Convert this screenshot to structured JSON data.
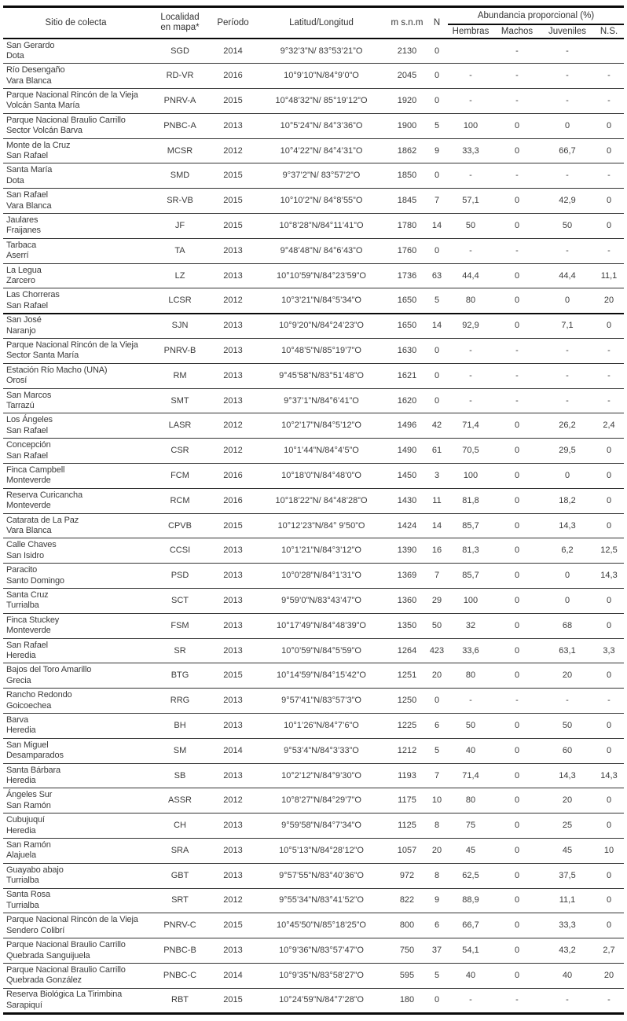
{
  "table": {
    "headers": {
      "site": "Sitio de colecta",
      "locality_line1": "Localidad",
      "locality_line2": "en mapa*",
      "period": "Período",
      "coords": "Latitud/Longitud",
      "elevation": "m s.n.m",
      "n": "N",
      "abundance_group": "Abundancia proporcional (%)",
      "females": "Hembras",
      "males": "Machos",
      "juveniles": "Juveniles",
      "ns": "N.S."
    },
    "rows": [
      {
        "site_line1": "San Gerardo",
        "site_line2": "Dota",
        "code": "SGD",
        "period": "2014",
        "coords": "9°32’3”N/ 83°53’21”O",
        "elevation": "2130",
        "n": "0",
        "females": "",
        "males": "-",
        "juveniles": "-",
        "ns": ""
      },
      {
        "site_line1": "Río Desengaño",
        "site_line2": "Vara Blanca",
        "code": "RD-VR",
        "period": "2016",
        "coords": "10°9’10”N/84°9’0”O",
        "elevation": "2045",
        "n": "0",
        "females": "-",
        "males": "-",
        "juveniles": "-",
        "ns": "-"
      },
      {
        "site_line1": "Parque Nacional Rincón de la Vieja",
        "site_line2": "Volcán Santa María",
        "code": "PNRV-A",
        "period": "2015",
        "coords": "10°48’32”N/ 85°19’12”O",
        "elevation": "1920",
        "n": "0",
        "females": "-",
        "males": "-",
        "juveniles": "-",
        "ns": "-"
      },
      {
        "site_line1": "Parque Nacional Braulio Carrillo",
        "site_line2": "Sector Volcán Barva",
        "code": "PNBC-A",
        "period": "2013",
        "coords": "10°5’24”N/ 84°3’36”O",
        "elevation": "1900",
        "n": "5",
        "females": "100",
        "males": "0",
        "juveniles": "0",
        "ns": "0"
      },
      {
        "site_line1": "Monte de la Cruz",
        "site_line2": "San Rafael",
        "code": "MCSR",
        "period": "2012",
        "coords": "10°4’22”N/ 84°4’31”O",
        "elevation": "1862",
        "n": "9",
        "females": "33,3",
        "males": "0",
        "juveniles": "66,7",
        "ns": "0"
      },
      {
        "site_line1": "Santa María",
        "site_line2": "Dota",
        "code": "SMD",
        "period": "2015",
        "coords": "9°37’2”N/ 83°57’2”O",
        "elevation": "1850",
        "n": "0",
        "females": "-",
        "males": "-",
        "juveniles": "-",
        "ns": "-"
      },
      {
        "site_line1": "San Rafael",
        "site_line2": "Vara Blanca",
        "code": "SR-VB",
        "period": "2015",
        "coords": "10°10’2”N/ 84°8’55”O",
        "elevation": "1845",
        "n": "7",
        "females": "57,1",
        "males": "0",
        "juveniles": "42,9",
        "ns": "0"
      },
      {
        "site_line1": "Jaulares",
        "site_line2": "Fraijanes",
        "code": "JF",
        "period": "2015",
        "coords": "10°8’28”N/84°11’41”O",
        "elevation": "1780",
        "n": "14",
        "females": "50",
        "males": "0",
        "juveniles": "50",
        "ns": "0"
      },
      {
        "site_line1": "Tarbaca",
        "site_line2": "Aserrí",
        "code": "TA",
        "period": "2013",
        "coords": "9°48’48”N/ 84°6’43”O",
        "elevation": "1760",
        "n": "0",
        "females": "-",
        "males": "-",
        "juveniles": "-",
        "ns": "-"
      },
      {
        "site_line1": "La Legua",
        "site_line2": "Zarcero",
        "code": "LZ",
        "period": "2013",
        "coords": "10°10’59”N/84°23’59”O",
        "elevation": "1736",
        "n": "63",
        "females": "44,4",
        "males": "0",
        "juveniles": "44,4",
        "ns": "11,1"
      },
      {
        "site_line1": "Las Chorreras",
        "site_line2": "San Rafael",
        "code": "LCSR",
        "period": "2012",
        "coords": "10°3’21”N/84°5’34”O",
        "elevation": "1650",
        "n": "5",
        "females": "80",
        "males": "0",
        "juveniles": "0",
        "ns": "20",
        "thick_border_below": true
      },
      {
        "site_line1": "San José",
        "site_line2": "Naranjo",
        "code": "SJN",
        "period": "2013",
        "coords": "10°9’20”N/84°24’23”O",
        "elevation": "1650",
        "n": "14",
        "females": "92,9",
        "males": "0",
        "juveniles": "7,1",
        "ns": "0"
      },
      {
        "site_line1": "Parque Nacional Rincón de la Vieja",
        "site_line2": "Sector Santa María",
        "code": "PNRV-B",
        "period": "2013",
        "coords": "10°48’5”N/85°19’7”O",
        "elevation": "1630",
        "n": "0",
        "females": "-",
        "males": "-",
        "juveniles": "-",
        "ns": "-"
      },
      {
        "site_line1": "Estación Río Macho (UNA)",
        "site_line2": "Orosí",
        "code": "RM",
        "period": "2013",
        "coords": "9°45’58”N/83°51’48”O",
        "elevation": "1621",
        "n": "0",
        "females": "-",
        "males": "-",
        "juveniles": "-",
        "ns": "-"
      },
      {
        "site_line1": "San Marcos",
        "site_line2": "Tarrazú",
        "code": "SMT",
        "period": "2013",
        "coords": "9°37’1”N/84°6’41”O",
        "elevation": "1620",
        "n": "0",
        "females": "-",
        "males": "-",
        "juveniles": "-",
        "ns": "-"
      },
      {
        "site_line1": "Los Ángeles",
        "site_line2": "San Rafael",
        "code": "LASR",
        "period": "2012",
        "coords": "10°2’17”N/84°5’12”O",
        "elevation": "1496",
        "n": "42",
        "females": "71,4",
        "males": "0",
        "juveniles": "26,2",
        "ns": "2,4"
      },
      {
        "site_line1": "Concepción",
        "site_line2": "San Rafael",
        "code": "CSR",
        "period": "2012",
        "coords": "10°1’44”N/84°4’5”O",
        "elevation": "1490",
        "n": "61",
        "females": "70,5",
        "males": "0",
        "juveniles": "29,5",
        "ns": "0"
      },
      {
        "site_line1": "Finca Campbell",
        "site_line2": "Monteverde",
        "code": "FCM",
        "period": "2016",
        "coords": "10°18’0”N/84°48’0”O",
        "elevation": "1450",
        "n": "3",
        "females": "100",
        "males": "0",
        "juveniles": "0",
        "ns": "0"
      },
      {
        "site_line1": "Reserva Curicancha",
        "site_line2": "Monteverde",
        "code": "RCM",
        "period": "2016",
        "coords": "10°18’22”N/ 84°48’28”O",
        "elevation": "1430",
        "n": "11",
        "females": "81,8",
        "males": "0",
        "juveniles": "18,2",
        "ns": "0"
      },
      {
        "site_line1": "Catarata de La Paz",
        "site_line2": "Vara Blanca",
        "code": "CPVB",
        "period": "2015",
        "coords": "10°12’23”N/84° 9’50”O",
        "elevation": "1424",
        "n": "14",
        "females": "85,7",
        "males": "0",
        "juveniles": "14,3",
        "ns": "0"
      },
      {
        "site_line1": "Calle Chaves",
        "site_line2": "San Isidro",
        "code": "CCSI",
        "period": "2013",
        "coords": "10°1’21”N/84°3’12”O",
        "elevation": "1390",
        "n": "16",
        "females": "81,3",
        "males": "0",
        "juveniles": "6,2",
        "ns": "12,5"
      },
      {
        "site_line1": "Paracito",
        "site_line2": "Santo Domingo",
        "code": "PSD",
        "period": "2013",
        "coords": "10°0’28”N/84°1’31”O",
        "elevation": "1369",
        "n": "7",
        "females": "85,7",
        "males": "0",
        "juveniles": "0",
        "ns": "14,3"
      },
      {
        "site_line1": "Santa Cruz",
        "site_line2": "Turrialba",
        "code": "SCT",
        "period": "2013",
        "coords": "9°59’0”N/83°43’47”O",
        "elevation": "1360",
        "n": "29",
        "females": "100",
        "males": "0",
        "juveniles": "0",
        "ns": "0"
      },
      {
        "site_line1": "Finca Stuckey",
        "site_line2": "Monteverde",
        "code": "FSM",
        "period": "2013",
        "coords": "10°17’49”N/84°48’39”O",
        "elevation": "1350",
        "n": "50",
        "females": "32",
        "males": "0",
        "juveniles": "68",
        "ns": "0"
      },
      {
        "site_line1": "San Rafael",
        "site_line2": "Heredia",
        "code": "SR",
        "period": "2013",
        "coords": "10°0’59”N/84°5’59”O",
        "elevation": "1264",
        "n": "423",
        "females": "33,6",
        "males": "0",
        "juveniles": "63,1",
        "ns": "3,3"
      },
      {
        "site_line1": "Bajos del Toro Amarillo",
        "site_line2": "Grecia",
        "code": "BTG",
        "period": "2015",
        "coords": "10°14’59”N/84°15’42”O",
        "elevation": "1251",
        "n": "20",
        "females": "80",
        "males": "0",
        "juveniles": "20",
        "ns": "0"
      },
      {
        "site_line1": "Rancho Redondo",
        "site_line2": "Goicoechea",
        "code": "RRG",
        "period": "2013",
        "coords": "9°57’41”N/83°57’3”O",
        "elevation": "1250",
        "n": "0",
        "females": "-",
        "males": "-",
        "juveniles": "-",
        "ns": "-"
      },
      {
        "site_line1": "Barva",
        "site_line2": "Heredia",
        "code": "BH",
        "period": "2013",
        "coords": "10°1’26”N/84°7’6”O",
        "elevation": "1225",
        "n": "6",
        "females": "50",
        "males": "0",
        "juveniles": "50",
        "ns": "0"
      },
      {
        "site_line1": "San Miguel",
        "site_line2": "Desamparados",
        "code": "SM",
        "period": "2014",
        "coords": "9°53’4”N/84°3’33”O",
        "elevation": "1212",
        "n": "5",
        "females": "40",
        "males": "0",
        "juveniles": "60",
        "ns": "0"
      },
      {
        "site_line1": "Santa Bárbara",
        "site_line2": "Heredia",
        "code": "SB",
        "period": "2013",
        "coords": "10°2’12”N/84°9’30”O",
        "elevation": "1193",
        "n": "7",
        "females": "71,4",
        "males": "0",
        "juveniles": "14,3",
        "ns": "14,3"
      },
      {
        "site_line1": "Ángeles Sur",
        "site_line2": "San Ramón",
        "code": "ASSR",
        "period": "2012",
        "coords": "10°8’27”N/84°29’7”O",
        "elevation": "1175",
        "n": "10",
        "females": "80",
        "males": "0",
        "juveniles": "20",
        "ns": "0"
      },
      {
        "site_line1": "Cubujuquí",
        "site_line2": "Heredia",
        "code": "CH",
        "period": "2013",
        "coords": "9°59’58”N/84°7’34”O",
        "elevation": "1125",
        "n": "8",
        "females": "75",
        "males": "0",
        "juveniles": "25",
        "ns": "0"
      },
      {
        "site_line1": "San Ramón",
        "site_line2": "Alajuela",
        "code": "SRA",
        "period": "2013",
        "coords": "10°5’13”N/84°28’12”O",
        "elevation": "1057",
        "n": "20",
        "females": "45",
        "males": "0",
        "juveniles": "45",
        "ns": "10"
      },
      {
        "site_line1": "Guayabo abajo",
        "site_line2": "Turrialba",
        "code": "GBT",
        "period": "2013",
        "coords": "9°57’55”N/83°40’36”O",
        "elevation": "972",
        "n": "8",
        "females": "62,5",
        "males": "0",
        "juveniles": "37,5",
        "ns": "0"
      },
      {
        "site_line1": "Santa Rosa",
        "site_line2": "Turrialba",
        "code": "SRT",
        "period": "2012",
        "coords": "9°55’34”N/83°41’52”O",
        "elevation": "822",
        "n": "9",
        "females": "88,9",
        "males": "0",
        "juveniles": "11,1",
        "ns": "0"
      },
      {
        "site_line1": "Parque Nacional Rincón de la Vieja",
        "site_line2": "Sendero Colibrí",
        "code": "PNRV-C",
        "period": "2015",
        "coords": "10°45’50”N/85°18’25”O",
        "elevation": "800",
        "n": "6",
        "females": "66,7",
        "males": "0",
        "juveniles": "33,3",
        "ns": "0"
      },
      {
        "site_line1": "Parque Nacional Braulio Carrillo",
        "site_line2": "Quebrada Sanguijuela",
        "code": "PNBC-B",
        "period": "2013",
        "coords": "10°9’36”N/83°57’47”O",
        "elevation": "750",
        "n": "37",
        "females": "54,1",
        "males": "0",
        "juveniles": "43,2",
        "ns": "2,7"
      },
      {
        "site_line1": "Parque Nacional Braulio Carrillo",
        "site_line2": "Quebrada González",
        "code": "PNBC-C",
        "period": "2014",
        "coords": "10°9’35”N/83°58’27”O",
        "elevation": "595",
        "n": "5",
        "females": "40",
        "males": "0",
        "juveniles": "40",
        "ns": "20"
      },
      {
        "site_line1": "Reserva Biológica La Tirimbina",
        "site_line2": "Sarapiquí",
        "code": "RBT",
        "period": "2015",
        "coords": "10°24’59”N/84°7’28”O",
        "elevation": "180",
        "n": "0",
        "females": "-",
        "males": "-",
        "juveniles": "-",
        "ns": "-"
      }
    ],
    "colors": {
      "text": "#3b3b3b",
      "rule_thick": "#0a0a0a",
      "rule_thin": "#333333"
    }
  }
}
